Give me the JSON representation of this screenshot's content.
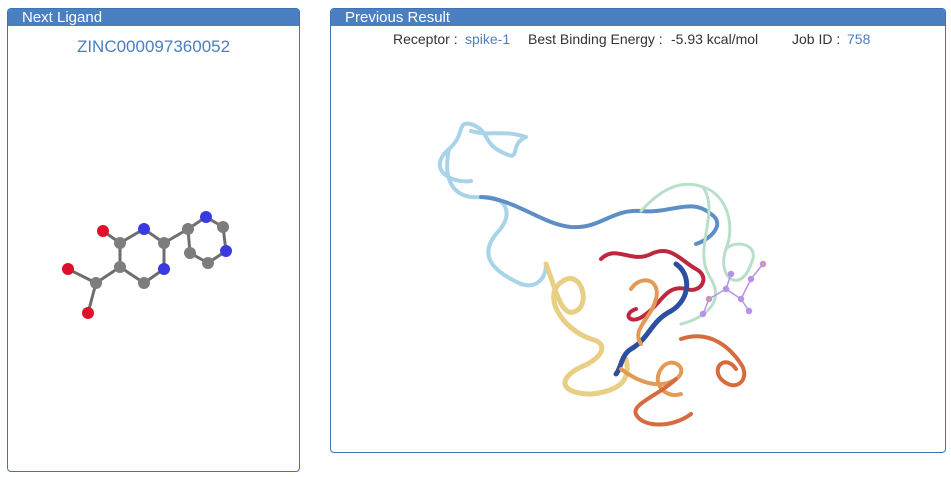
{
  "left_panel": {
    "header": "Next Ligand",
    "ligand_id": "ZINC000097360052"
  },
  "right_panel": {
    "header": "Previous Result",
    "receptor_label": "Receptor :",
    "receptor_value": "spike-1",
    "energy_label": "Best Binding Energy :",
    "energy_value": "-5.93 kcal/mol",
    "job_label": "Job ID :",
    "job_value": "758"
  },
  "colors": {
    "accent": "#4a7fc1",
    "carbon": "#7d7d7d",
    "nitrogen": "#3a3ae0",
    "oxygen": "#e0102a"
  }
}
